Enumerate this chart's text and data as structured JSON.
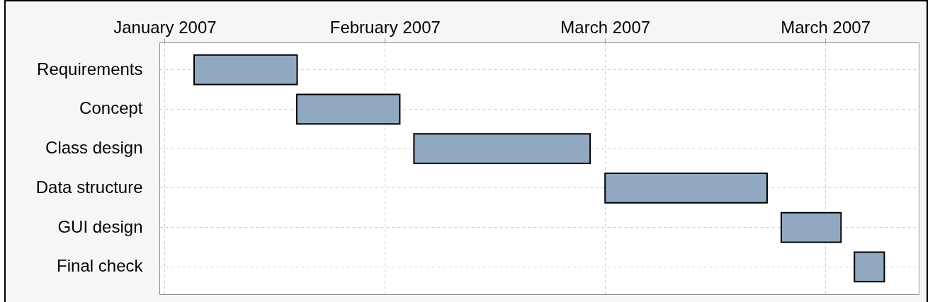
{
  "chart_data": {
    "type": "bar",
    "orientation": "horizontal",
    "categories": [
      "Requirements",
      "Concept",
      "Class design",
      "Data structure",
      "GUI design",
      "Final check"
    ],
    "base": [
      13520.75,
      13533.8,
      13548.7,
      13573,
      13595.4,
      13604.7
    ],
    "values": [
      13.1,
      13.1,
      22.4,
      20.6,
      7.6,
      3.8
    ],
    "color": "#91a8c1",
    "xlim": [
      "2007-01-03T08:00",
      "2007-04-09T21:00"
    ],
    "xticks": [
      {
        "value": "2007-01-04",
        "label": "January 2007"
      },
      {
        "value": "2007-02-01",
        "label": "February 2007"
      },
      {
        "value": "2007-03-01",
        "label": "March 2007"
      },
      {
        "value": "2007-03-29",
        "label": "March 2007"
      }
    ],
    "grid": true
  }
}
